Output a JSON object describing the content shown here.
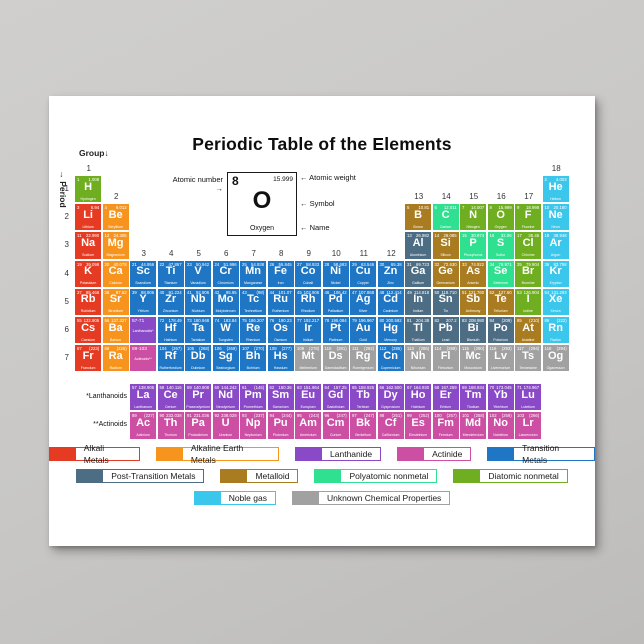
{
  "title": "Periodic Table of the Elements",
  "axis": {
    "group_label": "Group",
    "group_arrow": "↓",
    "period_label": "Period",
    "period_arrow": "→",
    "group_numbers": [
      1,
      2,
      3,
      4,
      5,
      6,
      7,
      8,
      9,
      10,
      11,
      12,
      13,
      14,
      15,
      16,
      17,
      18
    ],
    "period_numbers": [
      1,
      2,
      3,
      4,
      5,
      6,
      7
    ]
  },
  "example": {
    "atomic_number": "8",
    "atomic_weight": "15.999",
    "symbol": "O",
    "name": "Oxygen",
    "labels": {
      "atomic_number": "Atomic number →",
      "atomic_weight": "← Atomic weight",
      "symbol": "← Symbol",
      "name": "← Name"
    }
  },
  "series_labels": {
    "lanthanoids": "*Lanthanoids",
    "actinoids": "**Actinoids"
  },
  "placeholders": {
    "lanthanoids": {
      "range": "57-71",
      "label": "Lanthanoids*",
      "cat": "lanthanide",
      "p": 6,
      "g": 3
    },
    "actinoids": {
      "range": "89-103",
      "label": "Actinoids**",
      "cat": "actinide",
      "p": 7,
      "g": 3
    }
  },
  "categories": {
    "alkali": {
      "label": "Alkali Metals",
      "color": "#e63b23"
    },
    "alkaline": {
      "label": "Alkaline Earth Metals",
      "color": "#f7941e"
    },
    "lanthanide": {
      "label": "Lanthanide",
      "color": "#8a4ac8"
    },
    "actinide": {
      "label": "Actinide",
      "color": "#cc4fa4"
    },
    "transition": {
      "label": "Transition Metals",
      "color": "#1e76c5"
    },
    "post": {
      "label": "Post-Transition Metals",
      "color": "#4d6d85"
    },
    "metalloid": {
      "label": "Metalloid",
      "color": "#aa7c22"
    },
    "polyatomic": {
      "label": "Polyatomic nonmetal",
      "color": "#2ee08f"
    },
    "diatomic": {
      "label": "Diatomic nonmetal",
      "color": "#6fae20"
    },
    "noble": {
      "label": "Noble gas",
      "color": "#3bc6ec"
    },
    "unknown": {
      "label": "Unknown Chemical Properties",
      "color": "#a1a1a1"
    }
  },
  "legend_rows": [
    [
      "alkali",
      "alkaline",
      "lanthanide",
      "actinide",
      "transition"
    ],
    [
      "post",
      "metalloid",
      "polyatomic",
      "diatomic"
    ],
    [
      "noble",
      "unknown"
    ]
  ],
  "elements": [
    {
      "n": 1,
      "s": "H",
      "m": "Hydrogen",
      "w": "1.008",
      "c": "diatomic",
      "p": 1,
      "g": 1
    },
    {
      "n": 2,
      "s": "He",
      "m": "Helium",
      "w": "4.003",
      "c": "noble",
      "p": 1,
      "g": 18
    },
    {
      "n": 3,
      "s": "Li",
      "m": "Lithium",
      "w": "6.94",
      "c": "alkali",
      "p": 2,
      "g": 1
    },
    {
      "n": 4,
      "s": "Be",
      "m": "Beryllium",
      "w": "9.012",
      "c": "alkaline",
      "p": 2,
      "g": 2
    },
    {
      "n": 5,
      "s": "B",
      "m": "Boron",
      "w": "10.81",
      "c": "metalloid",
      "p": 2,
      "g": 13
    },
    {
      "n": 6,
      "s": "C",
      "m": "Carbon",
      "w": "12.011",
      "c": "polyatomic",
      "p": 2,
      "g": 14
    },
    {
      "n": 7,
      "s": "N",
      "m": "Nitrogen",
      "w": "14.007",
      "c": "diatomic",
      "p": 2,
      "g": 15
    },
    {
      "n": 8,
      "s": "O",
      "m": "Oxygen",
      "w": "15.999",
      "c": "diatomic",
      "p": 2,
      "g": 16
    },
    {
      "n": 9,
      "s": "F",
      "m": "Fluorine",
      "w": "18.998",
      "c": "diatomic",
      "p": 2,
      "g": 17
    },
    {
      "n": 10,
      "s": "Ne",
      "m": "Neon",
      "w": "20.180",
      "c": "noble",
      "p": 2,
      "g": 18
    },
    {
      "n": 11,
      "s": "Na",
      "m": "Sodium",
      "w": "22.990",
      "c": "alkali",
      "p": 3,
      "g": 1
    },
    {
      "n": 12,
      "s": "Mg",
      "m": "Magnesium",
      "w": "24.305",
      "c": "alkaline",
      "p": 3,
      "g": 2
    },
    {
      "n": 13,
      "s": "Al",
      "m": "Aluminium",
      "w": "26.982",
      "c": "post",
      "p": 3,
      "g": 13
    },
    {
      "n": 14,
      "s": "Si",
      "m": "Silicon",
      "w": "28.085",
      "c": "metalloid",
      "p": 3,
      "g": 14
    },
    {
      "n": 15,
      "s": "P",
      "m": "Phosphorus",
      "w": "30.974",
      "c": "polyatomic",
      "p": 3,
      "g": 15
    },
    {
      "n": 16,
      "s": "S",
      "m": "Sulfur",
      "w": "32.06",
      "c": "polyatomic",
      "p": 3,
      "g": 16
    },
    {
      "n": 17,
      "s": "Cl",
      "m": "Chlorine",
      "w": "35.45",
      "c": "diatomic",
      "p": 3,
      "g": 17
    },
    {
      "n": 18,
      "s": "Ar",
      "m": "Argon",
      "w": "39.948",
      "c": "noble",
      "p": 3,
      "g": 18
    },
    {
      "n": 19,
      "s": "K",
      "m": "Potassium",
      "w": "39.098",
      "c": "alkali",
      "p": 4,
      "g": 1
    },
    {
      "n": 20,
      "s": "Ca",
      "m": "Calcium",
      "w": "40.078",
      "c": "alkaline",
      "p": 4,
      "g": 2
    },
    {
      "n": 21,
      "s": "Sc",
      "m": "Scandium",
      "w": "44.956",
      "c": "transition",
      "p": 4,
      "g": 3
    },
    {
      "n": 22,
      "s": "Ti",
      "m": "Titanium",
      "w": "47.867",
      "c": "transition",
      "p": 4,
      "g": 4
    },
    {
      "n": 23,
      "s": "V",
      "m": "Vanadium",
      "w": "50.942",
      "c": "transition",
      "p": 4,
      "g": 5
    },
    {
      "n": 24,
      "s": "Cr",
      "m": "Chromium",
      "w": "51.996",
      "c": "transition",
      "p": 4,
      "g": 6
    },
    {
      "n": 25,
      "s": "Mn",
      "m": "Manganese",
      "w": "54.938",
      "c": "transition",
      "p": 4,
      "g": 7
    },
    {
      "n": 26,
      "s": "Fe",
      "m": "Iron",
      "w": "55.845",
      "c": "transition",
      "p": 4,
      "g": 8
    },
    {
      "n": 27,
      "s": "Co",
      "m": "Cobalt",
      "w": "58.933",
      "c": "transition",
      "p": 4,
      "g": 9
    },
    {
      "n": 28,
      "s": "Ni",
      "m": "Nickel",
      "w": "58.693",
      "c": "transition",
      "p": 4,
      "g": 10
    },
    {
      "n": 29,
      "s": "Cu",
      "m": "Copper",
      "w": "63.546",
      "c": "transition",
      "p": 4,
      "g": 11
    },
    {
      "n": 30,
      "s": "Zn",
      "m": "Zinc",
      "w": "65.38",
      "c": "transition",
      "p": 4,
      "g": 12
    },
    {
      "n": 31,
      "s": "Ga",
      "m": "Gallium",
      "w": "69.723",
      "c": "post",
      "p": 4,
      "g": 13
    },
    {
      "n": 32,
      "s": "Ge",
      "m": "Germanium",
      "w": "72.630",
      "c": "metalloid",
      "p": 4,
      "g": 14
    },
    {
      "n": 33,
      "s": "As",
      "m": "Arsenic",
      "w": "74.922",
      "c": "metalloid",
      "p": 4,
      "g": 15
    },
    {
      "n": 34,
      "s": "Se",
      "m": "Selenium",
      "w": "78.971",
      "c": "polyatomic",
      "p": 4,
      "g": 16
    },
    {
      "n": 35,
      "s": "Br",
      "m": "Bromine",
      "w": "79.904",
      "c": "diatomic",
      "p": 4,
      "g": 17
    },
    {
      "n": 36,
      "s": "Kr",
      "m": "Krypton",
      "w": "83.798",
      "c": "noble",
      "p": 4,
      "g": 18
    },
    {
      "n": 37,
      "s": "Rb",
      "m": "Rubidium",
      "w": "85.468",
      "c": "alkali",
      "p": 5,
      "g": 1
    },
    {
      "n": 38,
      "s": "Sr",
      "m": "Strontium",
      "w": "87.62",
      "c": "alkaline",
      "p": 5,
      "g": 2
    },
    {
      "n": 39,
      "s": "Y",
      "m": "Yttrium",
      "w": "88.906",
      "c": "transition",
      "p": 5,
      "g": 3
    },
    {
      "n": 40,
      "s": "Zr",
      "m": "Zirconium",
      "w": "91.224",
      "c": "transition",
      "p": 5,
      "g": 4
    },
    {
      "n": 41,
      "s": "Nb",
      "m": "Niobium",
      "w": "92.906",
      "c": "transition",
      "p": 5,
      "g": 5
    },
    {
      "n": 42,
      "s": "Mo",
      "m": "Molybdenum",
      "w": "95.95",
      "c": "transition",
      "p": 5,
      "g": 6
    },
    {
      "n": 43,
      "s": "Tc",
      "m": "Technetium",
      "w": "(98)",
      "c": "transition",
      "p": 5,
      "g": 7
    },
    {
      "n": 44,
      "s": "Ru",
      "m": "Ruthenium",
      "w": "101.07",
      "c": "transition",
      "p": 5,
      "g": 8
    },
    {
      "n": 45,
      "s": "Rh",
      "m": "Rhodium",
      "w": "102.906",
      "c": "transition",
      "p": 5,
      "g": 9
    },
    {
      "n": 46,
      "s": "Pd",
      "m": "Palladium",
      "w": "106.42",
      "c": "transition",
      "p": 5,
      "g": 10
    },
    {
      "n": 47,
      "s": "Ag",
      "m": "Silver",
      "w": "107.868",
      "c": "transition",
      "p": 5,
      "g": 11
    },
    {
      "n": 48,
      "s": "Cd",
      "m": "Cadmium",
      "w": "112.414",
      "c": "transition",
      "p": 5,
      "g": 12
    },
    {
      "n": 49,
      "s": "In",
      "m": "Indium",
      "w": "114.818",
      "c": "post",
      "p": 5,
      "g": 13
    },
    {
      "n": 50,
      "s": "Sn",
      "m": "Tin",
      "w": "118.710",
      "c": "post",
      "p": 5,
      "g": 14
    },
    {
      "n": 51,
      "s": "Sb",
      "m": "Antimony",
      "w": "121.760",
      "c": "metalloid",
      "p": 5,
      "g": 15
    },
    {
      "n": 52,
      "s": "Te",
      "m": "Tellurium",
      "w": "127.60",
      "c": "metalloid",
      "p": 5,
      "g": 16
    },
    {
      "n": 53,
      "s": "I",
      "m": "Iodine",
      "w": "126.904",
      "c": "diatomic",
      "p": 5,
      "g": 17
    },
    {
      "n": 54,
      "s": "Xe",
      "m": "Xenon",
      "w": "131.293",
      "c": "noble",
      "p": 5,
      "g": 18
    },
    {
      "n": 55,
      "s": "Cs",
      "m": "Caesium",
      "w": "132.905",
      "c": "alkali",
      "p": 6,
      "g": 1
    },
    {
      "n": 56,
      "s": "Ba",
      "m": "Barium",
      "w": "137.327",
      "c": "alkaline",
      "p": 6,
      "g": 2
    },
    {
      "n": 72,
      "s": "Hf",
      "m": "Hafnium",
      "w": "178.49",
      "c": "transition",
      "p": 6,
      "g": 4
    },
    {
      "n": 73,
      "s": "Ta",
      "m": "Tantalum",
      "w": "180.948",
      "c": "transition",
      "p": 6,
      "g": 5
    },
    {
      "n": 74,
      "s": "W",
      "m": "Tungsten",
      "w": "183.84",
      "c": "transition",
      "p": 6,
      "g": 6
    },
    {
      "n": 75,
      "s": "Re",
      "m": "Rhenium",
      "w": "186.207",
      "c": "transition",
      "p": 6,
      "g": 7
    },
    {
      "n": 76,
      "s": "Os",
      "m": "Osmium",
      "w": "190.23",
      "c": "transition",
      "p": 6,
      "g": 8
    },
    {
      "n": 77,
      "s": "Ir",
      "m": "Iridium",
      "w": "192.217",
      "c": "transition",
      "p": 6,
      "g": 9
    },
    {
      "n": 78,
      "s": "Pt",
      "m": "Platinum",
      "w": "195.084",
      "c": "transition",
      "p": 6,
      "g": 10
    },
    {
      "n": 79,
      "s": "Au",
      "m": "Gold",
      "w": "196.967",
      "c": "transition",
      "p": 6,
      "g": 11
    },
    {
      "n": 80,
      "s": "Hg",
      "m": "Mercury",
      "w": "200.592",
      "c": "transition",
      "p": 6,
      "g": 12
    },
    {
      "n": 81,
      "s": "Tl",
      "m": "Thallium",
      "w": "204.38",
      "c": "post",
      "p": 6,
      "g": 13
    },
    {
      "n": 82,
      "s": "Pb",
      "m": "Lead",
      "w": "207.2",
      "c": "post",
      "p": 6,
      "g": 14
    },
    {
      "n": 83,
      "s": "Bi",
      "m": "Bismuth",
      "w": "208.980",
      "c": "post",
      "p": 6,
      "g": 15
    },
    {
      "n": 84,
      "s": "Po",
      "m": "Polonium",
      "w": "(209)",
      "c": "post",
      "p": 6,
      "g": 16
    },
    {
      "n": 85,
      "s": "At",
      "m": "Astatine",
      "w": "(210)",
      "c": "metalloid",
      "p": 6,
      "g": 17
    },
    {
      "n": 86,
      "s": "Rn",
      "m": "Radon",
      "w": "(222)",
      "c": "noble",
      "p": 6,
      "g": 18
    },
    {
      "n": 87,
      "s": "Fr",
      "m": "Francium",
      "w": "(223)",
      "c": "alkali",
      "p": 7,
      "g": 1
    },
    {
      "n": 88,
      "s": "Ra",
      "m": "Radium",
      "w": "(226)",
      "c": "alkaline",
      "p": 7,
      "g": 2
    },
    {
      "n": 104,
      "s": "Rf",
      "m": "Rutherfordium",
      "w": "(267)",
      "c": "transition",
      "p": 7,
      "g": 4
    },
    {
      "n": 105,
      "s": "Db",
      "m": "Dubnium",
      "w": "(268)",
      "c": "transition",
      "p": 7,
      "g": 5
    },
    {
      "n": 106,
      "s": "Sg",
      "m": "Seaborgium",
      "w": "(269)",
      "c": "transition",
      "p": 7,
      "g": 6
    },
    {
      "n": 107,
      "s": "Bh",
      "m": "Bohrium",
      "w": "(270)",
      "c": "transition",
      "p": 7,
      "g": 7
    },
    {
      "n": 108,
      "s": "Hs",
      "m": "Hassium",
      "w": "(277)",
      "c": "transition",
      "p": 7,
      "g": 8
    },
    {
      "n": 109,
      "s": "Mt",
      "m": "Meitnerium",
      "w": "(278)",
      "c": "unknown",
      "p": 7,
      "g": 9
    },
    {
      "n": 110,
      "s": "Ds",
      "m": "Darmstadtium",
      "w": "(281)",
      "c": "unknown",
      "p": 7,
      "g": 10
    },
    {
      "n": 111,
      "s": "Rg",
      "m": "Roentgenium",
      "w": "(282)",
      "c": "unknown",
      "p": 7,
      "g": 11
    },
    {
      "n": 112,
      "s": "Cn",
      "m": "Copernicium",
      "w": "(285)",
      "c": "transition",
      "p": 7,
      "g": 12
    },
    {
      "n": 113,
      "s": "Nh",
      "m": "Nihonium",
      "w": "(286)",
      "c": "unknown",
      "p": 7,
      "g": 13
    },
    {
      "n": 114,
      "s": "Fl",
      "m": "Flerovium",
      "w": "(289)",
      "c": "unknown",
      "p": 7,
      "g": 14
    },
    {
      "n": 115,
      "s": "Mc",
      "m": "Moscovium",
      "w": "(290)",
      "c": "unknown",
      "p": 7,
      "g": 15
    },
    {
      "n": 116,
      "s": "Lv",
      "m": "Livermorium",
      "w": "(293)",
      "c": "unknown",
      "p": 7,
      "g": 16
    },
    {
      "n": 117,
      "s": "Ts",
      "m": "Tennessine",
      "w": "(294)",
      "c": "unknown",
      "p": 7,
      "g": 17
    },
    {
      "n": 118,
      "s": "Og",
      "m": "Oganesson",
      "w": "(294)",
      "c": "unknown",
      "p": 7,
      "g": 18
    },
    {
      "n": 57,
      "s": "La",
      "m": "Lanthanum",
      "w": "138.905",
      "c": "lanthanide",
      "p": 8,
      "g": 3
    },
    {
      "n": 58,
      "s": "Ce",
      "m": "Cerium",
      "w": "140.116",
      "c": "lanthanide",
      "p": 8,
      "g": 4
    },
    {
      "n": 59,
      "s": "Pr",
      "m": "Praseodymium",
      "w": "140.908",
      "c": "lanthanide",
      "p": 8,
      "g": 5
    },
    {
      "n": 60,
      "s": "Nd",
      "m": "Neodymium",
      "w": "144.242",
      "c": "lanthanide",
      "p": 8,
      "g": 6
    },
    {
      "n": 61,
      "s": "Pm",
      "m": "Promethium",
      "w": "(145)",
      "c": "lanthanide",
      "p": 8,
      "g": 7
    },
    {
      "n": 62,
      "s": "Sm",
      "m": "Samarium",
      "w": "150.36",
      "c": "lanthanide",
      "p": 8,
      "g": 8
    },
    {
      "n": 63,
      "s": "Eu",
      "m": "Europium",
      "w": "151.964",
      "c": "lanthanide",
      "p": 8,
      "g": 9
    },
    {
      "n": 64,
      "s": "Gd",
      "m": "Gadolinium",
      "w": "157.25",
      "c": "lanthanide",
      "p": 8,
      "g": 10
    },
    {
      "n": 65,
      "s": "Tb",
      "m": "Terbium",
      "w": "158.925",
      "c": "lanthanide",
      "p": 8,
      "g": 11
    },
    {
      "n": 66,
      "s": "Dy",
      "m": "Dysprosium",
      "w": "162.500",
      "c": "lanthanide",
      "p": 8,
      "g": 12
    },
    {
      "n": 67,
      "s": "Ho",
      "m": "Holmium",
      "w": "164.930",
      "c": "lanthanide",
      "p": 8,
      "g": 13
    },
    {
      "n": 68,
      "s": "Er",
      "m": "Erbium",
      "w": "167.259",
      "c": "lanthanide",
      "p": 8,
      "g": 14
    },
    {
      "n": 69,
      "s": "Tm",
      "m": "Thulium",
      "w": "168.934",
      "c": "lanthanide",
      "p": 8,
      "g": 15
    },
    {
      "n": 70,
      "s": "Yb",
      "m": "Ytterbium",
      "w": "173.045",
      "c": "lanthanide",
      "p": 8,
      "g": 16
    },
    {
      "n": 71,
      "s": "Lu",
      "m": "Lutetium",
      "w": "174.967",
      "c": "lanthanide",
      "p": 8,
      "g": 17
    },
    {
      "n": 89,
      "s": "Ac",
      "m": "Actinium",
      "w": "(227)",
      "c": "actinide",
      "p": 9,
      "g": 3
    },
    {
      "n": 90,
      "s": "Th",
      "m": "Thorium",
      "w": "232.038",
      "c": "actinide",
      "p": 9,
      "g": 4
    },
    {
      "n": 91,
      "s": "Pa",
      "m": "Protactinium",
      "w": "231.036",
      "c": "actinide",
      "p": 9,
      "g": 5
    },
    {
      "n": 92,
      "s": "U",
      "m": "Uranium",
      "w": "238.029",
      "c": "actinide",
      "p": 9,
      "g": 6
    },
    {
      "n": 93,
      "s": "Np",
      "m": "Neptunium",
      "w": "(237)",
      "c": "actinide",
      "p": 9,
      "g": 7
    },
    {
      "n": 94,
      "s": "Pu",
      "m": "Plutonium",
      "w": "(244)",
      "c": "actinide",
      "p": 9,
      "g": 8
    },
    {
      "n": 95,
      "s": "Am",
      "m": "Americium",
      "w": "(243)",
      "c": "actinide",
      "p": 9,
      "g": 9
    },
    {
      "n": 96,
      "s": "Cm",
      "m": "Curium",
      "w": "(247)",
      "c": "actinide",
      "p": 9,
      "g": 10
    },
    {
      "n": 97,
      "s": "Bk",
      "m": "Berkelium",
      "w": "(247)",
      "c": "actinide",
      "p": 9,
      "g": 11
    },
    {
      "n": 98,
      "s": "Cf",
      "m": "Californium",
      "w": "(251)",
      "c": "actinide",
      "p": 9,
      "g": 12
    },
    {
      "n": 99,
      "s": "Es",
      "m": "Einsteinium",
      "w": "(252)",
      "c": "actinide",
      "p": 9,
      "g": 13
    },
    {
      "n": 100,
      "s": "Fm",
      "m": "Fermium",
      "w": "(257)",
      "c": "actinide",
      "p": 9,
      "g": 14
    },
    {
      "n": 101,
      "s": "Md",
      "m": "Mendelevium",
      "w": "(258)",
      "c": "actinide",
      "p": 9,
      "g": 15
    },
    {
      "n": 102,
      "s": "No",
      "m": "Nobelium",
      "w": "(259)",
      "c": "actinide",
      "p": 9,
      "g": 16
    },
    {
      "n": 103,
      "s": "Lr",
      "m": "Lawrencium",
      "w": "(266)",
      "c": "actinide",
      "p": 9,
      "g": 17
    }
  ]
}
